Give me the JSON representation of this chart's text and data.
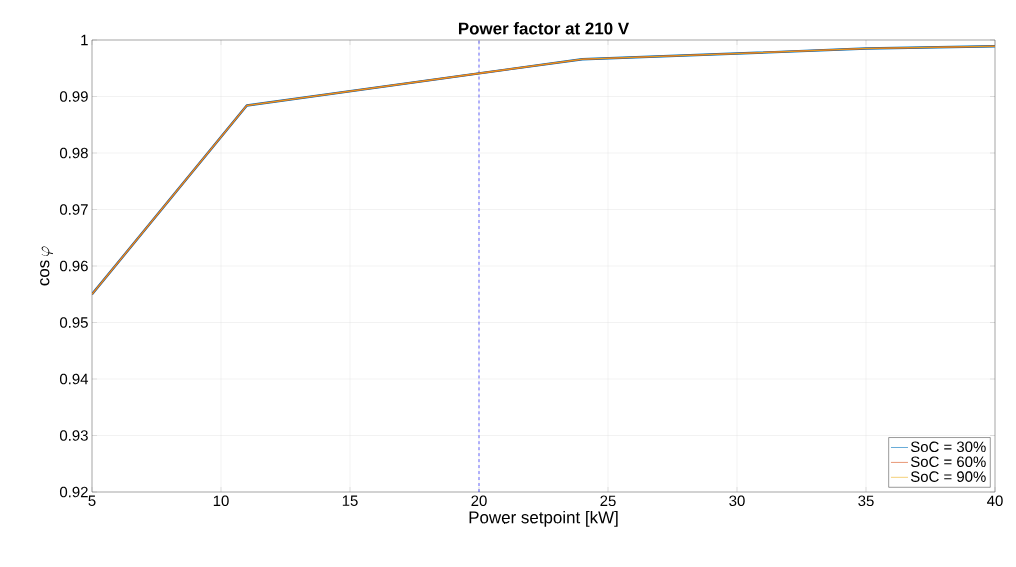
{
  "chart_data": {
    "type": "line",
    "title": "Power factor at 210 V",
    "xlabel": "Power setpoint [kW]",
    "ylabel": "\\cos\\varphi",
    "x": [
      5,
      11,
      20,
      24,
      30,
      35,
      40
    ],
    "series": [
      {
        "name": "SoC = 30%",
        "color": "#0072bd",
        "values": [
          0.955,
          0.9884,
          0.9941,
          0.9966,
          0.9976,
          0.9985,
          0.9989
        ]
      },
      {
        "name": "SoC = 60%",
        "color": "#d95319",
        "values": [
          0.955,
          0.9884,
          0.9941,
          0.9966,
          0.9976,
          0.9985,
          0.9989
        ]
      },
      {
        "name": "SoC = 90%",
        "color": "#edb120",
        "values": [
          0.955,
          0.9884,
          0.9941,
          0.9966,
          0.9976,
          0.9985,
          0.9989
        ]
      }
    ],
    "xlim": [
      5,
      40
    ],
    "xticks": [
      5,
      10,
      15,
      20,
      25,
      30,
      35,
      40
    ],
    "ylim": [
      0.92,
      1
    ],
    "yticks": [
      0.92,
      0.93,
      0.94,
      0.95,
      0.96,
      0.97,
      0.98,
      0.99,
      1
    ],
    "ref_lines": [
      {
        "axis": "x",
        "value": 20,
        "color": "#0000ff",
        "line_style": "dashed"
      }
    ],
    "grid": true,
    "legend": "bottom right",
    "line_style": "solid",
    "marker": "none"
  }
}
